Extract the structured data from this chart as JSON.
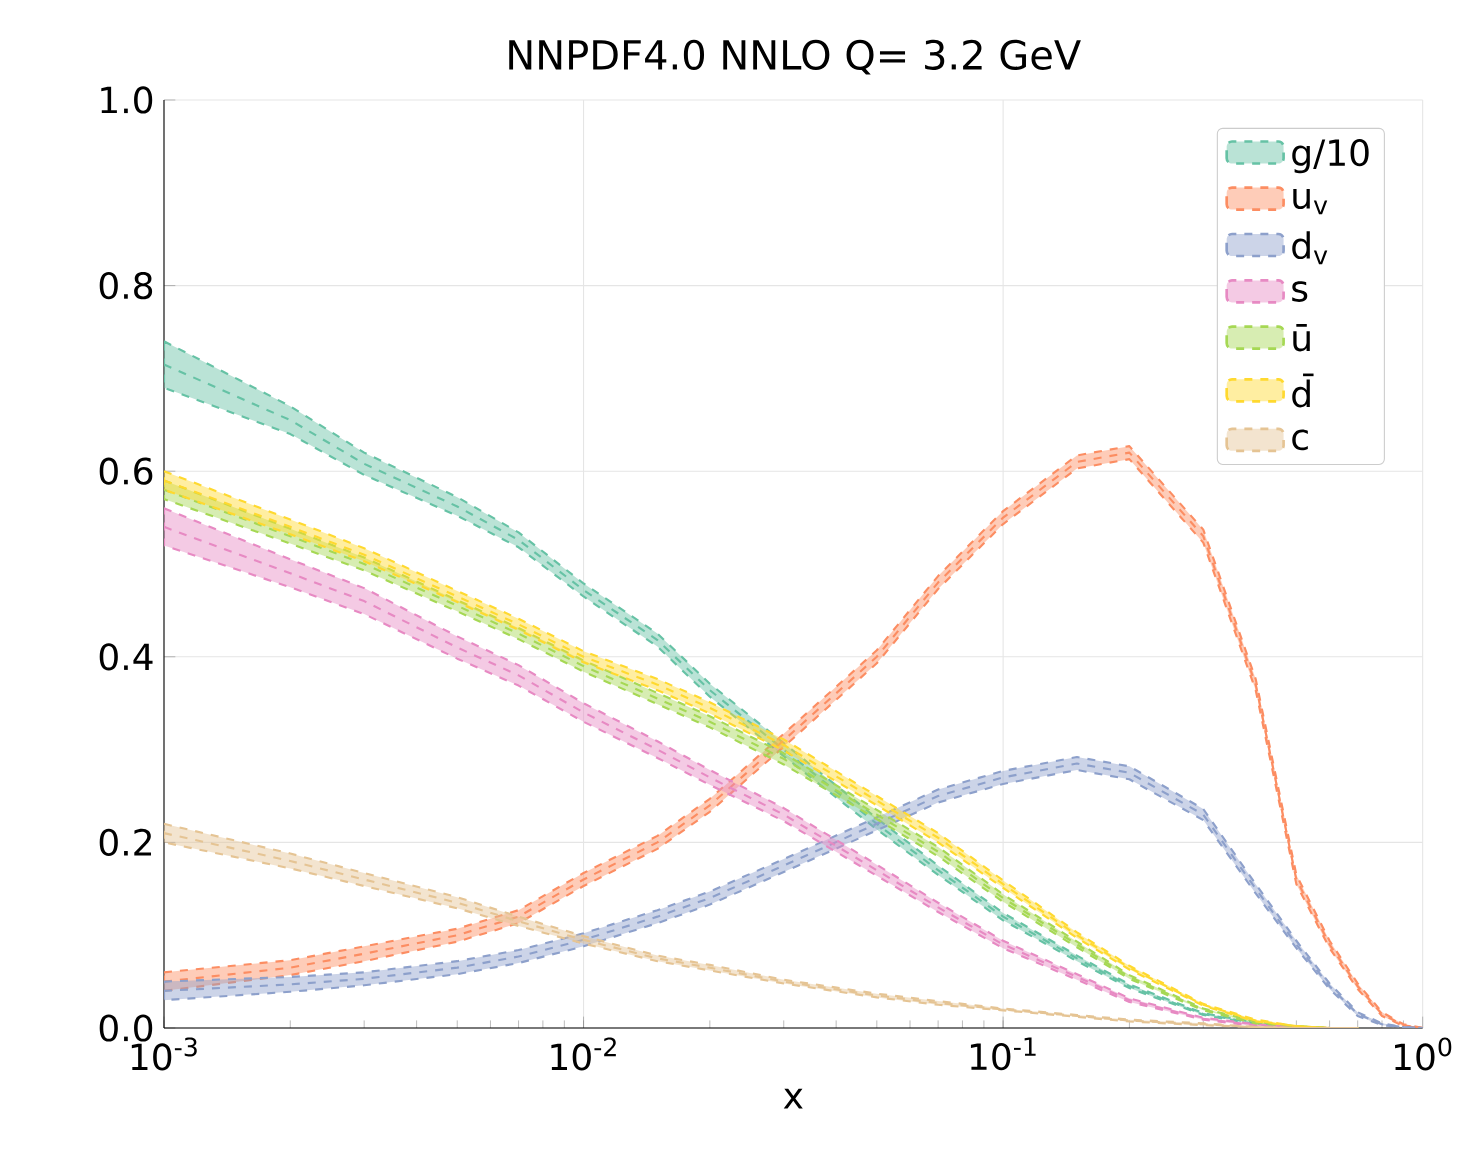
{
  "chart_data": {
    "type": "line",
    "title": "NNPDF4.0 NNLO Q= 3.2 GeV",
    "xlabel": "x",
    "x": [
      0.001,
      0.002,
      0.003,
      0.005,
      0.007,
      0.01,
      0.015,
      0.02,
      0.03,
      0.05,
      0.07,
      0.1,
      0.15,
      0.2,
      0.3,
      0.4,
      0.5,
      0.6,
      0.7,
      0.8,
      0.9,
      1.0
    ],
    "series": [
      {
        "name": "g/10",
        "color": "#66c2a5",
        "values": [
          0.715,
          0.655,
          0.608,
          0.562,
          0.526,
          0.472,
          0.418,
          0.364,
          0.3,
          0.22,
          0.17,
          0.12,
          0.075,
          0.045,
          0.015,
          0.005,
          0.001,
          0,
          0,
          null,
          null,
          null
        ],
        "lower": [
          0.69,
          0.64,
          0.596,
          0.552,
          0.518,
          0.465,
          0.411,
          0.357,
          0.293,
          0.214,
          0.165,
          0.116,
          0.072,
          0.043,
          0.014,
          0.004,
          0.001,
          0,
          0,
          null,
          null,
          null
        ],
        "upper": [
          0.74,
          0.67,
          0.62,
          0.572,
          0.534,
          0.479,
          0.425,
          0.371,
          0.307,
          0.226,
          0.175,
          0.124,
          0.078,
          0.047,
          0.016,
          0.006,
          0.001,
          0,
          0,
          null,
          null,
          null
        ]
      },
      {
        "name": "u$_{v}$",
        "color": "#fc8d62",
        "values": [
          0.05,
          0.065,
          0.08,
          0.1,
          0.12,
          0.16,
          0.2,
          0.24,
          0.31,
          0.4,
          0.48,
          0.55,
          0.61,
          0.62,
          0.53,
          0.37,
          0.16,
          0.09,
          0.045,
          0.015,
          0.003,
          0
        ],
        "lower": [
          0.04,
          0.057,
          0.072,
          0.093,
          0.113,
          0.153,
          0.193,
          0.233,
          0.303,
          0.393,
          0.473,
          0.543,
          0.603,
          0.613,
          0.523,
          0.364,
          0.155,
          0.086,
          0.042,
          0.013,
          0.002,
          0
        ],
        "upper": [
          0.06,
          0.073,
          0.088,
          0.107,
          0.127,
          0.167,
          0.207,
          0.247,
          0.317,
          0.407,
          0.487,
          0.557,
          0.617,
          0.627,
          0.537,
          0.376,
          0.165,
          0.094,
          0.048,
          0.017,
          0.004,
          0
        ]
      },
      {
        "name": "d$_{v}$",
        "color": "#8da0cb",
        "values": [
          0.04,
          0.047,
          0.053,
          0.065,
          0.077,
          0.095,
          0.12,
          0.14,
          0.175,
          0.22,
          0.25,
          0.27,
          0.285,
          0.275,
          0.23,
          0.15,
          0.09,
          0.045,
          0.015,
          0.004,
          0.001,
          0
        ],
        "lower": [
          0.03,
          0.039,
          0.046,
          0.058,
          0.07,
          0.088,
          0.113,
          0.133,
          0.168,
          0.213,
          0.243,
          0.263,
          0.278,
          0.268,
          0.224,
          0.145,
          0.086,
          0.042,
          0.013,
          0.003,
          0.001,
          0
        ],
        "upper": [
          0.05,
          0.055,
          0.06,
          0.072,
          0.084,
          0.102,
          0.127,
          0.147,
          0.182,
          0.227,
          0.257,
          0.277,
          0.292,
          0.282,
          0.236,
          0.155,
          0.094,
          0.048,
          0.017,
          0.005,
          0.001,
          0
        ]
      },
      {
        "name": "s",
        "color": "#e78ac3",
        "values": [
          0.54,
          0.49,
          0.46,
          0.41,
          0.38,
          0.34,
          0.3,
          0.27,
          0.23,
          0.17,
          0.13,
          0.09,
          0.055,
          0.03,
          0.01,
          0.003,
          0.001,
          0,
          null,
          null,
          null,
          null
        ],
        "lower": [
          0.52,
          0.475,
          0.446,
          0.398,
          0.369,
          0.33,
          0.291,
          0.262,
          0.223,
          0.164,
          0.125,
          0.086,
          0.052,
          0.028,
          0.009,
          0.002,
          0.001,
          0,
          null,
          null,
          null,
          null
        ],
        "upper": [
          0.56,
          0.505,
          0.474,
          0.422,
          0.391,
          0.35,
          0.309,
          0.278,
          0.237,
          0.176,
          0.135,
          0.094,
          0.058,
          0.032,
          0.011,
          0.004,
          0.001,
          0,
          null,
          null,
          null,
          null
        ]
      },
      {
        "name": "ū",
        "color": "#a6d854",
        "values": [
          0.58,
          0.53,
          0.5,
          0.455,
          0.425,
          0.39,
          0.355,
          0.33,
          0.29,
          0.23,
          0.19,
          0.14,
          0.09,
          0.055,
          0.02,
          0.006,
          0.002,
          0,
          0,
          null,
          null,
          null
        ],
        "lower": [
          0.57,
          0.522,
          0.493,
          0.449,
          0.419,
          0.384,
          0.349,
          0.324,
          0.284,
          0.225,
          0.185,
          0.136,
          0.087,
          0.053,
          0.019,
          0.005,
          0.002,
          0,
          0,
          null,
          null,
          null
        ],
        "upper": [
          0.59,
          0.538,
          0.507,
          0.461,
          0.431,
          0.396,
          0.361,
          0.336,
          0.296,
          0.235,
          0.195,
          0.144,
          0.093,
          0.057,
          0.021,
          0.007,
          0.002,
          0,
          0,
          null,
          null,
          null
        ]
      },
      {
        "name": "d̄",
        "color": "#ffd92f",
        "values": [
          0.59,
          0.54,
          0.51,
          0.465,
          0.435,
          0.4,
          0.37,
          0.345,
          0.305,
          0.245,
          0.205,
          0.155,
          0.1,
          0.065,
          0.025,
          0.008,
          0.002,
          0,
          0,
          null,
          null,
          null
        ],
        "lower": [
          0.58,
          0.532,
          0.503,
          0.459,
          0.429,
          0.394,
          0.364,
          0.339,
          0.299,
          0.24,
          0.2,
          0.151,
          0.097,
          0.063,
          0.024,
          0.007,
          0.002,
          0,
          0,
          null,
          null,
          null
        ],
        "upper": [
          0.6,
          0.548,
          0.517,
          0.471,
          0.441,
          0.406,
          0.376,
          0.351,
          0.311,
          0.25,
          0.21,
          0.159,
          0.103,
          0.067,
          0.026,
          0.009,
          0.002,
          0,
          0,
          null,
          null,
          null
        ]
      },
      {
        "name": "c",
        "color": "#e5c494",
        "values": [
          0.21,
          0.18,
          0.16,
          0.135,
          0.115,
          0.095,
          0.075,
          0.065,
          0.05,
          0.035,
          0.027,
          0.02,
          0.013,
          0.008,
          0.004,
          0.001,
          0,
          0,
          0,
          null,
          null,
          null
        ],
        "lower": [
          0.2,
          0.172,
          0.153,
          0.129,
          0.11,
          0.091,
          0.072,
          0.062,
          0.048,
          0.033,
          0.025,
          0.019,
          0.012,
          0.007,
          0.003,
          0.001,
          0,
          0,
          0,
          null,
          null,
          null
        ],
        "upper": [
          0.22,
          0.188,
          0.167,
          0.141,
          0.12,
          0.099,
          0.078,
          0.068,
          0.052,
          0.037,
          0.029,
          0.021,
          0.014,
          0.009,
          0.005,
          0.001,
          0,
          0,
          0,
          null,
          null,
          null
        ]
      }
    ],
    "xlim": [
      0.001,
      1.0
    ],
    "ylim": [
      0,
      1.0
    ],
    "xticks": [
      {
        "value": 0.001,
        "label": "10$^{-3}$"
      },
      {
        "value": 0.01,
        "label": "10$^{-2}$"
      },
      {
        "value": 0.1,
        "label": "10$^{-1}$"
      },
      {
        "value": 1.0,
        "label": "10$^{0}$"
      }
    ],
    "yticks": [
      {
        "value": 0,
        "label": "0.0"
      },
      {
        "value": 0.2,
        "label": "0.2"
      },
      {
        "value": 0.4,
        "label": "0.4"
      },
      {
        "value": 0.6,
        "label": "0.6"
      },
      {
        "value": 0.8,
        "label": "0.8"
      },
      {
        "value": 1.0,
        "label": "1.0"
      }
    ],
    "log": "x",
    "grid": true,
    "legend": "top right",
    "line_style": "dashed"
  }
}
